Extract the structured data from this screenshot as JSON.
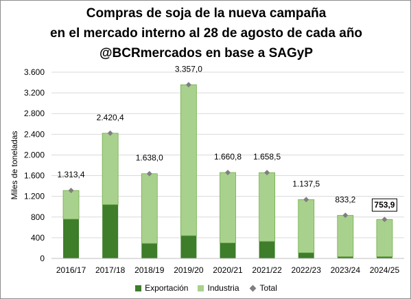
{
  "title": {
    "line1": "Compras de soja de la nueva campaña",
    "line2": "en el mercado interno al 28 de agosto de cada año",
    "line3": "@BCRmercados en base a SAGyP"
  },
  "colors": {
    "exportacion": "#3e7d2a",
    "industria": "#a9d18e",
    "total": "#7f7f7f",
    "gridline": "#d9d9d9",
    "bar_outline": "#70ad47"
  },
  "chart_data": {
    "type": "bar",
    "stacked": true,
    "categories": [
      "2016/17",
      "2017/18",
      "2018/19",
      "2019/20",
      "2020/21",
      "2021/22",
      "2022/23",
      "2023/24",
      "2024/25"
    ],
    "series": [
      {
        "name": "Exportación",
        "values": [
          760,
          1040,
          290,
          440,
          300,
          330,
          110,
          35,
          35
        ]
      },
      {
        "name": "Industria",
        "values": [
          553.4,
          1380.4,
          1348.0,
          2917.0,
          1360.8,
          1328.5,
          1027.5,
          798.2,
          718.9
        ]
      },
      {
        "name": "Total",
        "marker": "diamond",
        "values": [
          1313.4,
          2420.4,
          1638.0,
          3357.0,
          1660.8,
          1658.5,
          1137.5,
          833.2,
          753.9
        ]
      }
    ],
    "data_labels": [
      "1.313,4",
      "2.420,4",
      "1.638,0",
      "3.357,0",
      "1.660,8",
      "1.658,5",
      "1.137,5",
      "833,2",
      "753,9"
    ],
    "highlighted_label_index": 8,
    "ylabel": "Miles de toneladas",
    "xlabel": "",
    "ylim": [
      0,
      3600
    ],
    "yticks": [
      0,
      400,
      800,
      1200,
      1600,
      2000,
      2400,
      2800,
      3200,
      3600
    ],
    "ytick_labels": [
      "0",
      "400",
      "800",
      "1.200",
      "1.600",
      "2.000",
      "2.400",
      "2.800",
      "3.200",
      "3.600"
    ],
    "grid": true,
    "legend_position": "bottom"
  }
}
